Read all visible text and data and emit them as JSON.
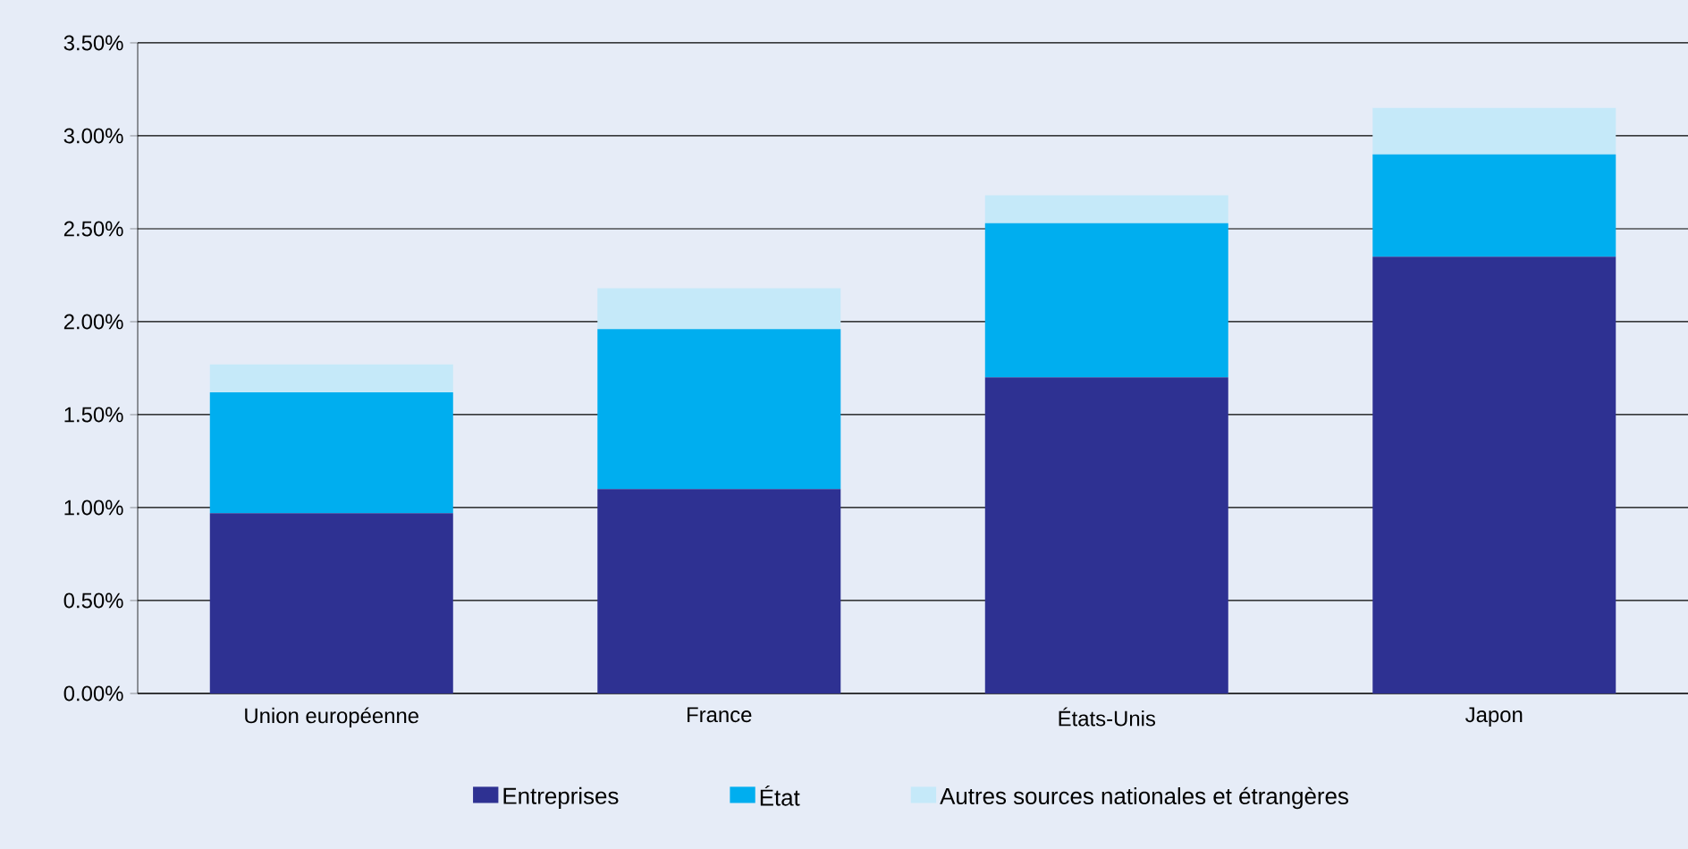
{
  "chart_data": {
    "type": "bar",
    "stacked": true,
    "categories": [
      "Union européenne",
      "France",
      "États-Unis",
      "Japon"
    ],
    "series": [
      {
        "name": "Entreprises",
        "color": "#2e3192",
        "values": [
          0.97,
          1.1,
          1.7,
          2.35
        ]
      },
      {
        "name": "État",
        "color": "#00aeef",
        "values": [
          0.65,
          0.86,
          0.83,
          0.55
        ]
      },
      {
        "name": "Autres sources nationales et étrangères",
        "color": "#c5e9f9",
        "values": [
          0.15,
          0.22,
          0.15,
          0.25
        ]
      }
    ],
    "ylim": [
      0,
      3.5
    ],
    "yticks": [
      {
        "value": 0,
        "label": "0.00%"
      },
      {
        "value": 0.5,
        "label": "0.50%"
      },
      {
        "value": 1,
        "label": "1.00%"
      },
      {
        "value": 1.5,
        "label": "1.50%"
      },
      {
        "value": 2,
        "label": "2.00%"
      },
      {
        "value": 2.5,
        "label": "2.50%"
      },
      {
        "value": 3,
        "label": "3.00%"
      },
      {
        "value": 3.5,
        "label": "3.50%"
      }
    ],
    "grid": "y",
    "legend": "bottom"
  }
}
